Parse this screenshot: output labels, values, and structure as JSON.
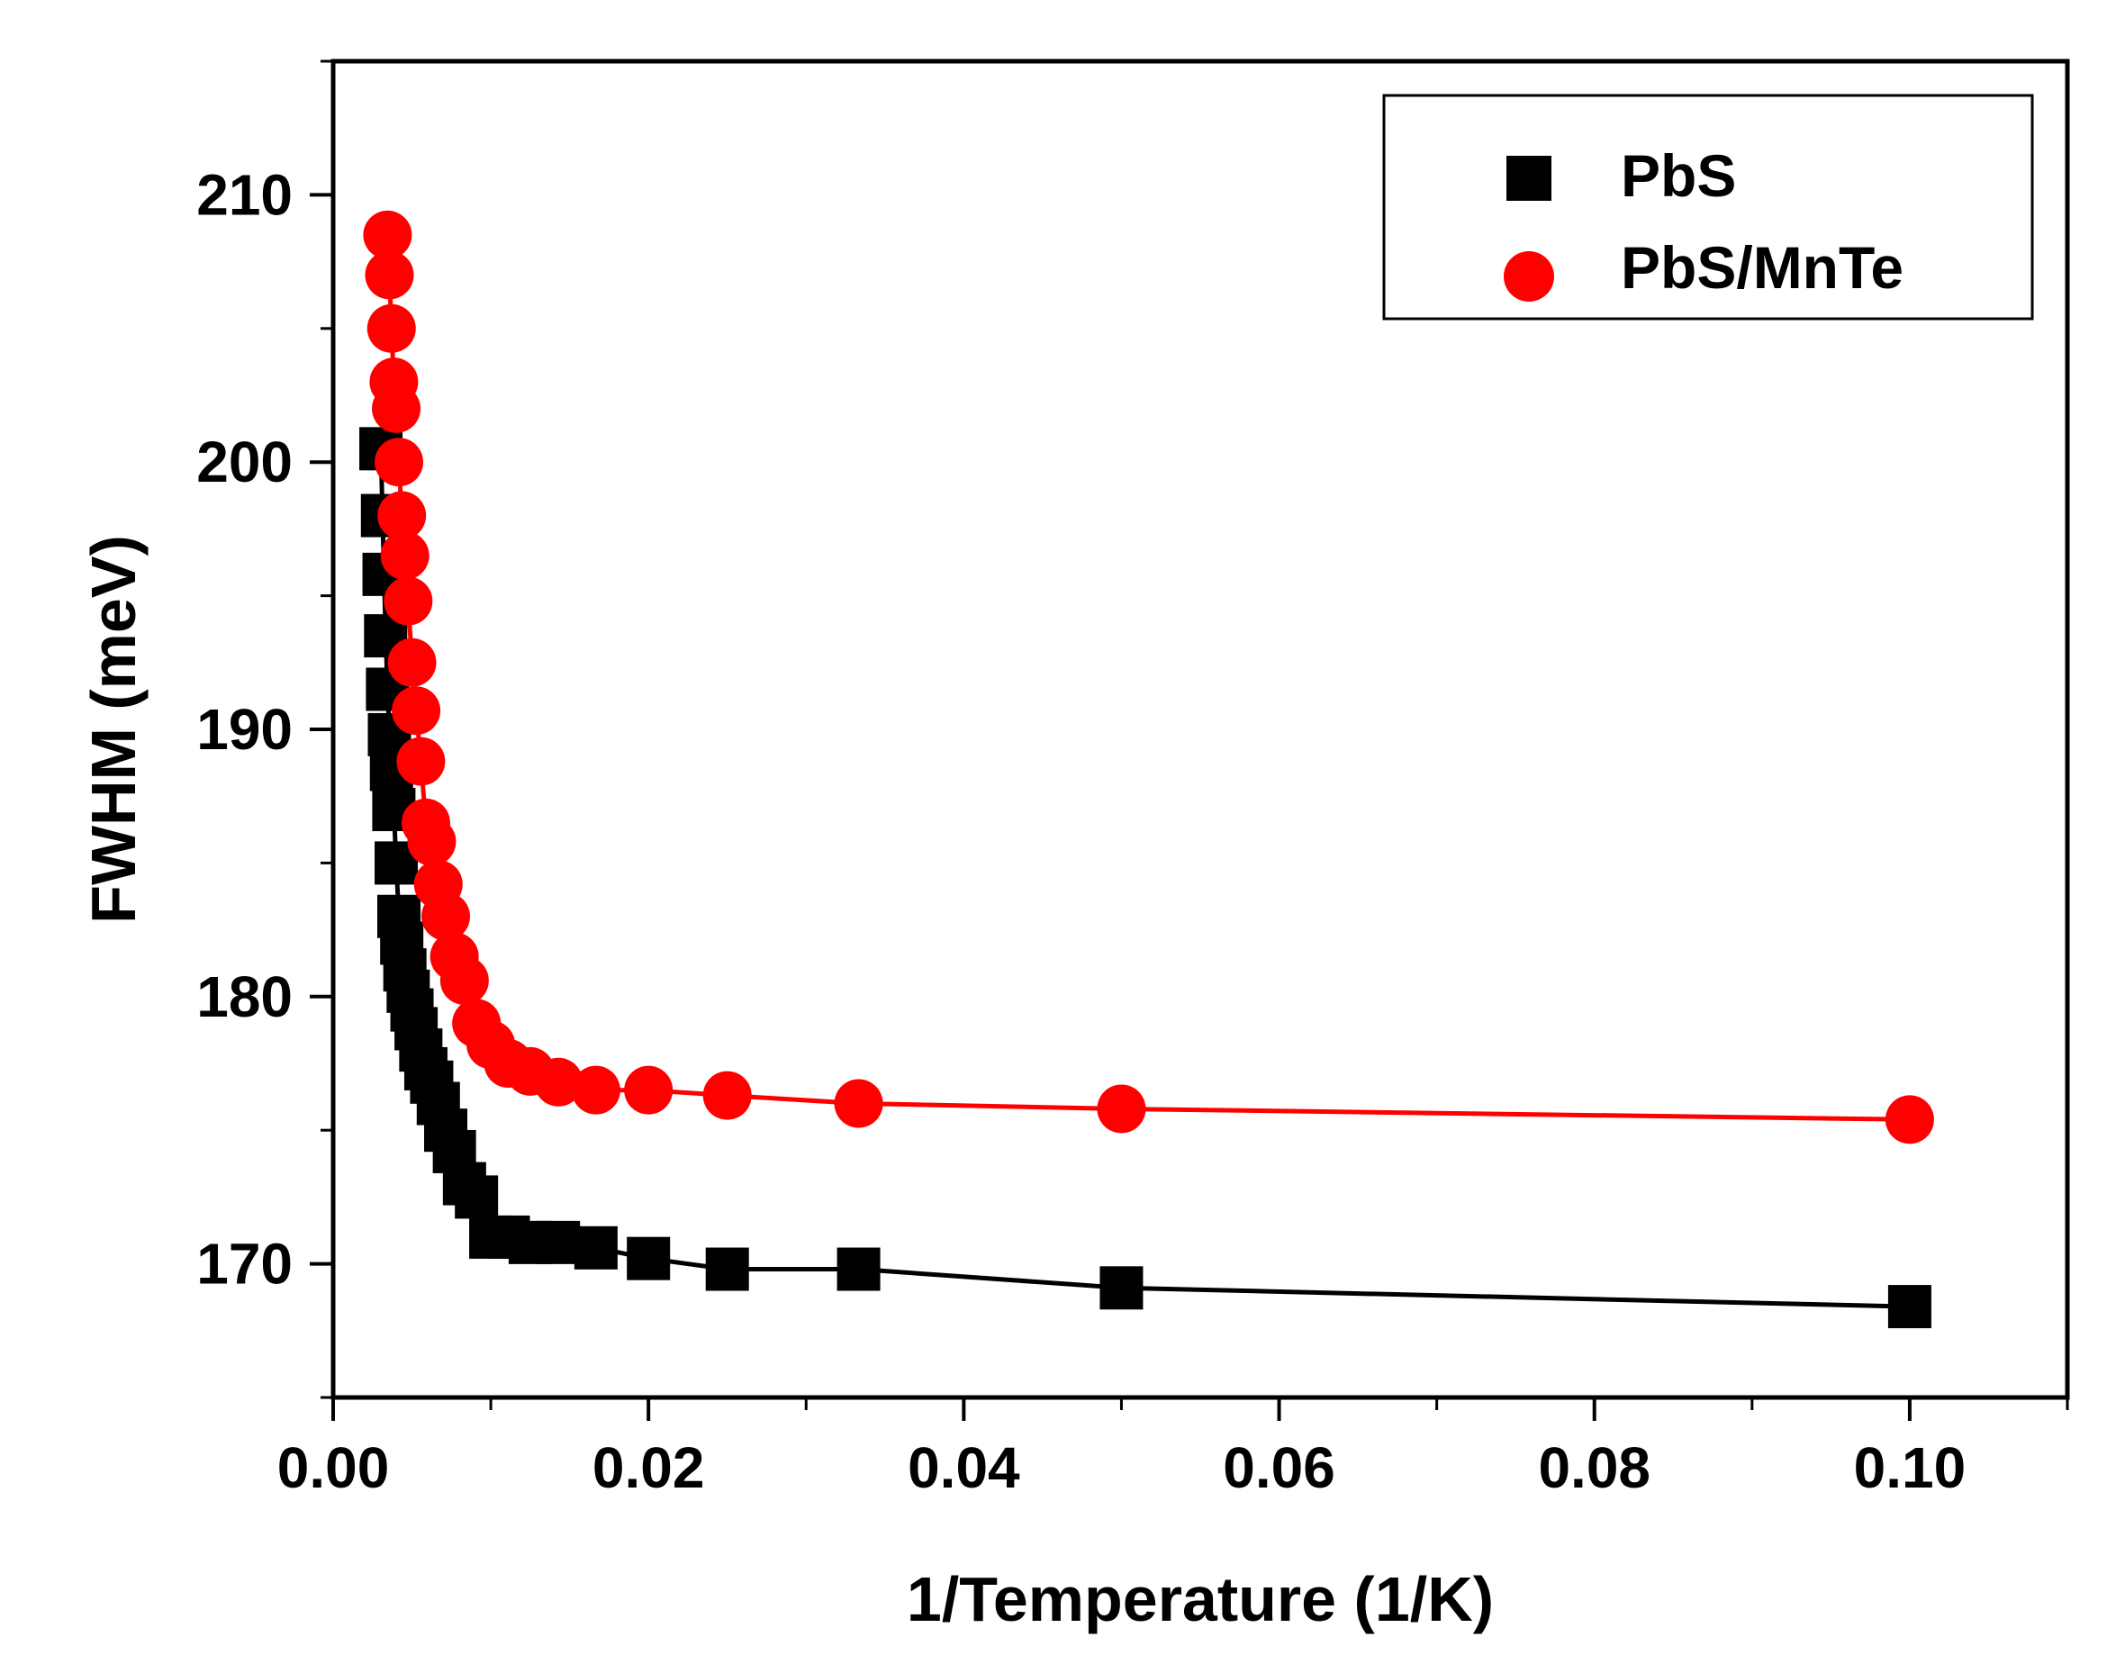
{
  "colors": {
    "pbs": "#000000",
    "pbs_mnte": "#ff0000",
    "axis": "#000000",
    "background": "#ffffff"
  },
  "chart_data": {
    "type": "scatter",
    "title": "",
    "xlabel": "1/Temperature (1/K)",
    "ylabel": "FWHM (meV)",
    "xlim": [
      0.0,
      0.11
    ],
    "ylim": [
      165,
      215
    ],
    "xticks": [
      "0.00",
      "0.02",
      "0.04",
      "0.06",
      "0.08",
      "0.10"
    ],
    "yticks": [
      "170",
      "180",
      "190",
      "200",
      "210"
    ],
    "xtick_values": [
      0.0,
      0.02,
      0.04,
      0.06,
      0.08,
      0.1
    ],
    "ytick_values": [
      170,
      180,
      190,
      200,
      210
    ],
    "xminor_values": [
      0.01,
      0.03,
      0.05,
      0.07,
      0.09,
      0.11
    ],
    "yminor_values": [
      165,
      175,
      185,
      195,
      205,
      215
    ],
    "legend_position": "top-right",
    "grid": false,
    "series": [
      {
        "name": "PbS",
        "marker": "square",
        "color": "#000000",
        "x": [
          0.00303,
          0.00313,
          0.00323,
          0.00333,
          0.00345,
          0.00357,
          0.0037,
          0.00385,
          0.004,
          0.00417,
          0.00435,
          0.00455,
          0.00476,
          0.005,
          0.00526,
          0.00556,
          0.00588,
          0.00625,
          0.00667,
          0.00714,
          0.00769,
          0.00833,
          0.00909,
          0.01,
          0.01111,
          0.0125,
          0.01429,
          0.01667,
          0.02,
          0.025,
          0.03333,
          0.05,
          0.1
        ],
        "y": [
          200.5,
          198.0,
          195.8,
          193.5,
          191.5,
          189.8,
          188.5,
          187.0,
          185.0,
          183.0,
          182.0,
          181.0,
          180.2,
          179.5,
          178.8,
          178.0,
          177.3,
          176.8,
          176.0,
          175.0,
          174.2,
          173.0,
          172.5,
          171.0,
          171.0,
          170.8,
          170.8,
          170.6,
          170.2,
          169.8,
          169.8,
          169.1,
          168.4
        ]
      },
      {
        "name": "PbS/MnTe",
        "marker": "circle",
        "color": "#ff0000",
        "x": [
          0.00345,
          0.00357,
          0.0037,
          0.00385,
          0.004,
          0.00417,
          0.00435,
          0.00455,
          0.00476,
          0.005,
          0.00526,
          0.00556,
          0.00588,
          0.00625,
          0.00667,
          0.00714,
          0.00769,
          0.00833,
          0.00909,
          0.01,
          0.01111,
          0.0125,
          0.01429,
          0.01667,
          0.02,
          0.025,
          0.03333,
          0.05,
          0.1
        ],
        "y": [
          208.5,
          207.0,
          205.0,
          203.0,
          202.0,
          200.0,
          198.0,
          196.5,
          194.8,
          192.5,
          190.7,
          188.8,
          186.5,
          185.8,
          184.2,
          183.0,
          181.5,
          180.6,
          179.0,
          178.2,
          177.5,
          177.2,
          176.8,
          176.5,
          176.5,
          176.3,
          176.0,
          175.8,
          175.4
        ]
      }
    ]
  }
}
